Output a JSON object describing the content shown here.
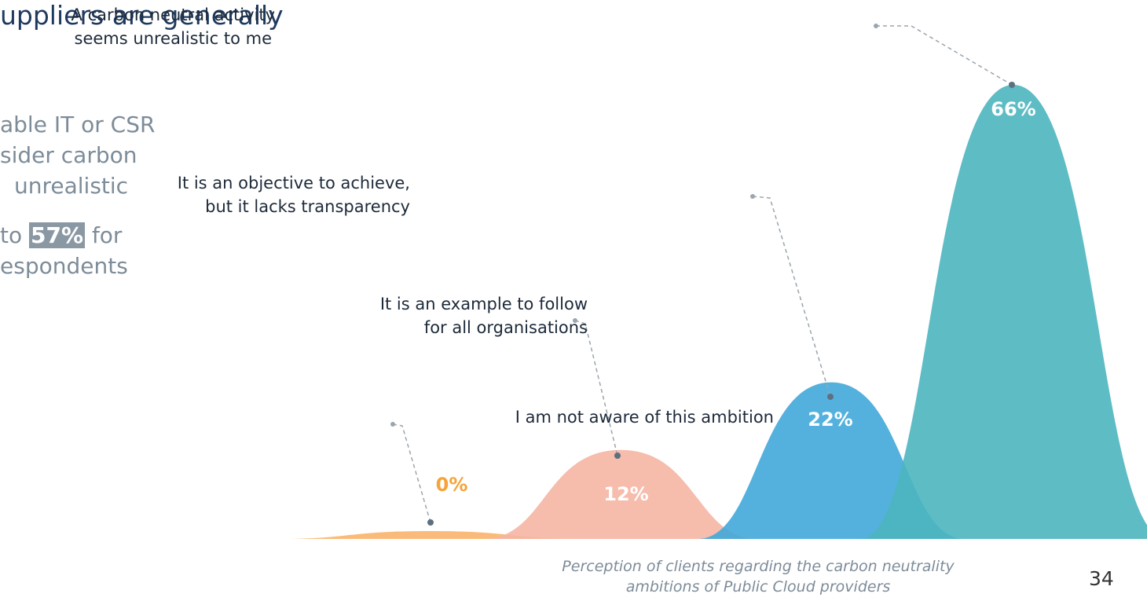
{
  "heading": "uppliers are generally",
  "body": [
    "able IT or CSR",
    "sider carbon",
    "unrealistic",
    [
      "to ",
      "57%",
      " for"
    ],
    "espondents"
  ],
  "page_number": "34",
  "chart_data": {
    "type": "bell",
    "caption": "Perception of clients regarding the carbon neutrality\nambitions of Public Cloud providers",
    "categories": [
      "I am not aware of this ambition",
      "It is an example to follow\nfor all organisations",
      "It is an objective to achieve,\nbut it lacks transparency",
      "A carbon neutral activity\nseems unrealistic to me"
    ],
    "values": [
      0,
      12,
      22,
      66
    ],
    "value_labels": [
      "0%",
      "12%",
      "22%",
      "66%"
    ],
    "colors": [
      "#f9b46b",
      "#f5b5a3",
      "#41a9d9",
      "#4db5bf"
    ]
  }
}
